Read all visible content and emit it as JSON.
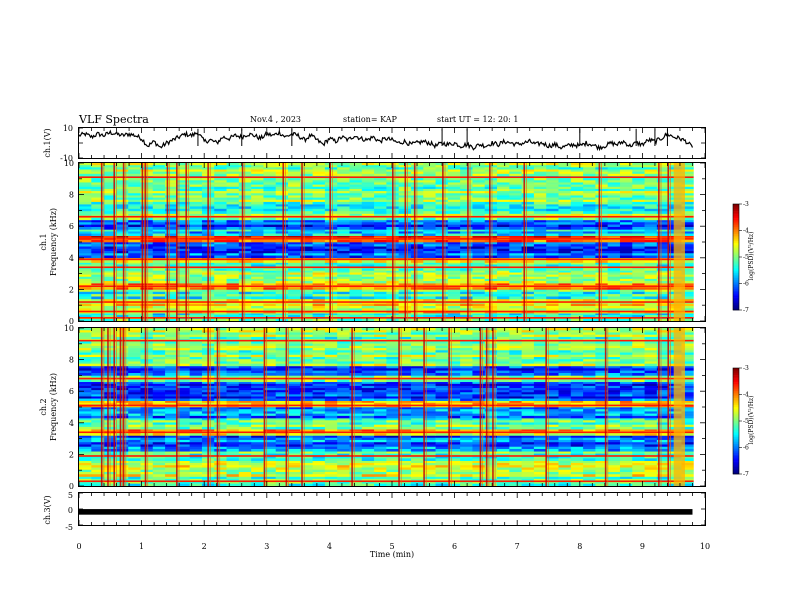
{
  "header": {
    "title": "VLF Spectra",
    "date": "Nov.4 , 2023",
    "station": "station= KAP",
    "start": "start UT = 12: 20: 1"
  },
  "chart_data": [
    {
      "id": "waveform_ch1",
      "type": "line",
      "ylabel": "ch.1(V)",
      "ylim": [
        -10,
        10
      ],
      "yticks": [
        "10",
        "-10"
      ],
      "xlim": [
        0,
        10
      ],
      "x": [
        0,
        0.1,
        0.2,
        0.3,
        0.4,
        0.5,
        0.6,
        0.7,
        0.8,
        0.9,
        1.0,
        1.1,
        1.2,
        1.3,
        1.4,
        1.5,
        1.6,
        1.7,
        1.8,
        1.9,
        2.0,
        2.1,
        2.2,
        2.3,
        2.4,
        2.5,
        2.6,
        2.7,
        2.8,
        2.9,
        3.0,
        3.1,
        3.2,
        3.3,
        3.4,
        3.5,
        3.6,
        3.7,
        3.8,
        3.9,
        4.0,
        4.1,
        4.2,
        4.3,
        4.4,
        4.5,
        4.6,
        4.7,
        4.8,
        4.9,
        5.0,
        5.1,
        5.2,
        5.3,
        5.4,
        5.5,
        5.6,
        5.7,
        5.8,
        5.9,
        6.0,
        6.1,
        6.2,
        6.3,
        6.4,
        6.5,
        6.6,
        6.7,
        6.8,
        6.9,
        7.0,
        7.1,
        7.2,
        7.3,
        7.4,
        7.5,
        7.6,
        7.7,
        7.8,
        7.9,
        8.0,
        8.1,
        8.2,
        8.3,
        8.4,
        8.5,
        8.6,
        8.7,
        8.8,
        8.9,
        9.0,
        9.1,
        9.2,
        9.3,
        9.4,
        9.5,
        9.6,
        9.7,
        9.8
      ],
      "values": [
        5,
        6,
        4,
        6,
        5,
        7,
        6,
        5,
        6,
        5,
        3,
        -2,
        1,
        -3,
        0,
        2,
        4,
        6,
        5,
        7,
        1,
        2,
        0,
        4,
        3,
        5,
        4,
        6,
        5,
        3,
        6,
        5,
        7,
        4,
        6,
        5,
        2,
        5,
        2,
        -1,
        3,
        1,
        4,
        2,
        5,
        3,
        2,
        4,
        1,
        3,
        2,
        0,
        1,
        -1,
        0,
        1,
        0,
        -2,
        0,
        -1,
        0,
        -2,
        -1,
        -3,
        -1,
        -2,
        0,
        -1,
        1,
        0,
        -1,
        0,
        1,
        -1,
        0,
        -2,
        -1,
        -3,
        -2,
        -1,
        -2,
        0,
        -1,
        -3,
        -2,
        0,
        -1,
        1,
        -2,
        0,
        -1,
        2,
        1,
        3,
        6,
        4,
        3,
        1,
        -3
      ],
      "spikes_x": [
        1.9,
        2.6,
        3.4,
        5.8,
        6.2,
        8.0,
        8.9,
        9.2,
        9.4
      ]
    },
    {
      "id": "spectrogram_ch1",
      "type": "heatmap",
      "ylabel": "ch.1\nFrequency (kHz)",
      "xlim": [
        0,
        10
      ],
      "ylim": [
        0,
        10
      ],
      "yticks": [
        "0",
        "2",
        "4",
        "6",
        "8",
        "10"
      ],
      "colorbar": {
        "label": "log(PSD)(V²/Hz)",
        "range": [
          -7,
          -3
        ],
        "ticks": [
          "-3",
          "-4",
          "-5",
          "-6",
          "-7"
        ]
      },
      "bands": [
        {
          "f0": 0.0,
          "f1": 0.5,
          "level": -5.3
        },
        {
          "f0": 0.5,
          "f1": 1.4,
          "level": -4.6
        },
        {
          "f0": 1.4,
          "f1": 2.0,
          "level": -5.2
        },
        {
          "f0": 2.0,
          "f1": 2.4,
          "level": -4.2
        },
        {
          "f0": 2.4,
          "f1": 3.2,
          "level": -5.0
        },
        {
          "f0": 3.2,
          "f1": 3.7,
          "level": -5.4
        },
        {
          "f0": 3.7,
          "f1": 4.0,
          "level": -4.4
        },
        {
          "f0": 4.0,
          "f1": 5.0,
          "level": -6.2
        },
        {
          "f0": 5.0,
          "f1": 5.4,
          "level": -3.9
        },
        {
          "f0": 5.4,
          "f1": 5.8,
          "level": -5.6
        },
        {
          "f0": 5.8,
          "f1": 6.4,
          "level": -6.1
        },
        {
          "f0": 6.4,
          "f1": 6.8,
          "level": -4.8
        },
        {
          "f0": 6.8,
          "f1": 7.4,
          "level": -5.3
        },
        {
          "f0": 7.4,
          "f1": 10.0,
          "level": -5.0
        }
      ],
      "lines_khz": [
        0.2,
        0.6,
        1.2,
        2.2,
        3.4,
        3.9,
        5.2,
        6.6,
        9.1
      ],
      "bursts_x": [
        0.35,
        0.55,
        0.7,
        1.0,
        1.05,
        1.4,
        1.55,
        1.7,
        2.05,
        2.6,
        3.25,
        3.55,
        4.0,
        5.0,
        5.2,
        5.35,
        5.8,
        6.2,
        6.55,
        7.1,
        8.3,
        9.25,
        9.4
      ]
    },
    {
      "id": "spectrogram_ch2",
      "type": "heatmap",
      "ylabel": "ch.2\nFrequency (kHz)",
      "xlim": [
        0,
        10
      ],
      "ylim": [
        0,
        10
      ],
      "yticks": [
        "0",
        "2",
        "4",
        "6",
        "8",
        "10"
      ],
      "colorbar": {
        "label": "log(PSD)(V²/Hz)",
        "range": [
          -7,
          -3
        ],
        "ticks": [
          "-3",
          "-4",
          "-5",
          "-6",
          "-7"
        ]
      },
      "bands": [
        {
          "f0": 0.0,
          "f1": 0.6,
          "level": -5.2
        },
        {
          "f0": 0.6,
          "f1": 1.6,
          "level": -4.8
        },
        {
          "f0": 1.6,
          "f1": 2.2,
          "level": -5.1
        },
        {
          "f0": 2.2,
          "f1": 3.2,
          "level": -6.1
        },
        {
          "f0": 3.2,
          "f1": 3.6,
          "level": -4.3
        },
        {
          "f0": 3.6,
          "f1": 4.3,
          "level": -5.1
        },
        {
          "f0": 4.3,
          "f1": 5.0,
          "level": -6.0
        },
        {
          "f0": 5.0,
          "f1": 5.4,
          "level": -4.5
        },
        {
          "f0": 5.4,
          "f1": 6.6,
          "level": -6.2
        },
        {
          "f0": 6.6,
          "f1": 7.0,
          "level": -4.8
        },
        {
          "f0": 7.0,
          "f1": 7.6,
          "level": -6.1
        },
        {
          "f0": 7.6,
          "f1": 10.0,
          "level": -5.0
        }
      ],
      "lines_khz": [
        0.3,
        1.9,
        3.4,
        5.1,
        6.8,
        9.2
      ],
      "bursts_x": [
        0.35,
        0.45,
        0.55,
        0.65,
        0.7,
        1.05,
        1.55,
        2.05,
        2.2,
        2.95,
        3.3,
        3.55,
        4.35,
        5.1,
        5.5,
        5.9,
        6.4,
        6.5,
        6.6,
        7.45,
        8.4,
        9.25,
        9.4
      ]
    },
    {
      "id": "waveform_ch3",
      "type": "line",
      "ylabel": "ch.3(V)",
      "ylim": [
        -5,
        5
      ],
      "yticks": [
        "5",
        "0",
        "-5"
      ],
      "xlim": [
        0,
        10
      ],
      "x": [
        0,
        9.8
      ],
      "values": [
        -0.9,
        -0.9
      ],
      "xlabel": "Time (min)",
      "xticks": [
        "0",
        "1",
        "2",
        "3",
        "4",
        "5",
        "6",
        "7",
        "8",
        "9",
        "10"
      ]
    }
  ]
}
